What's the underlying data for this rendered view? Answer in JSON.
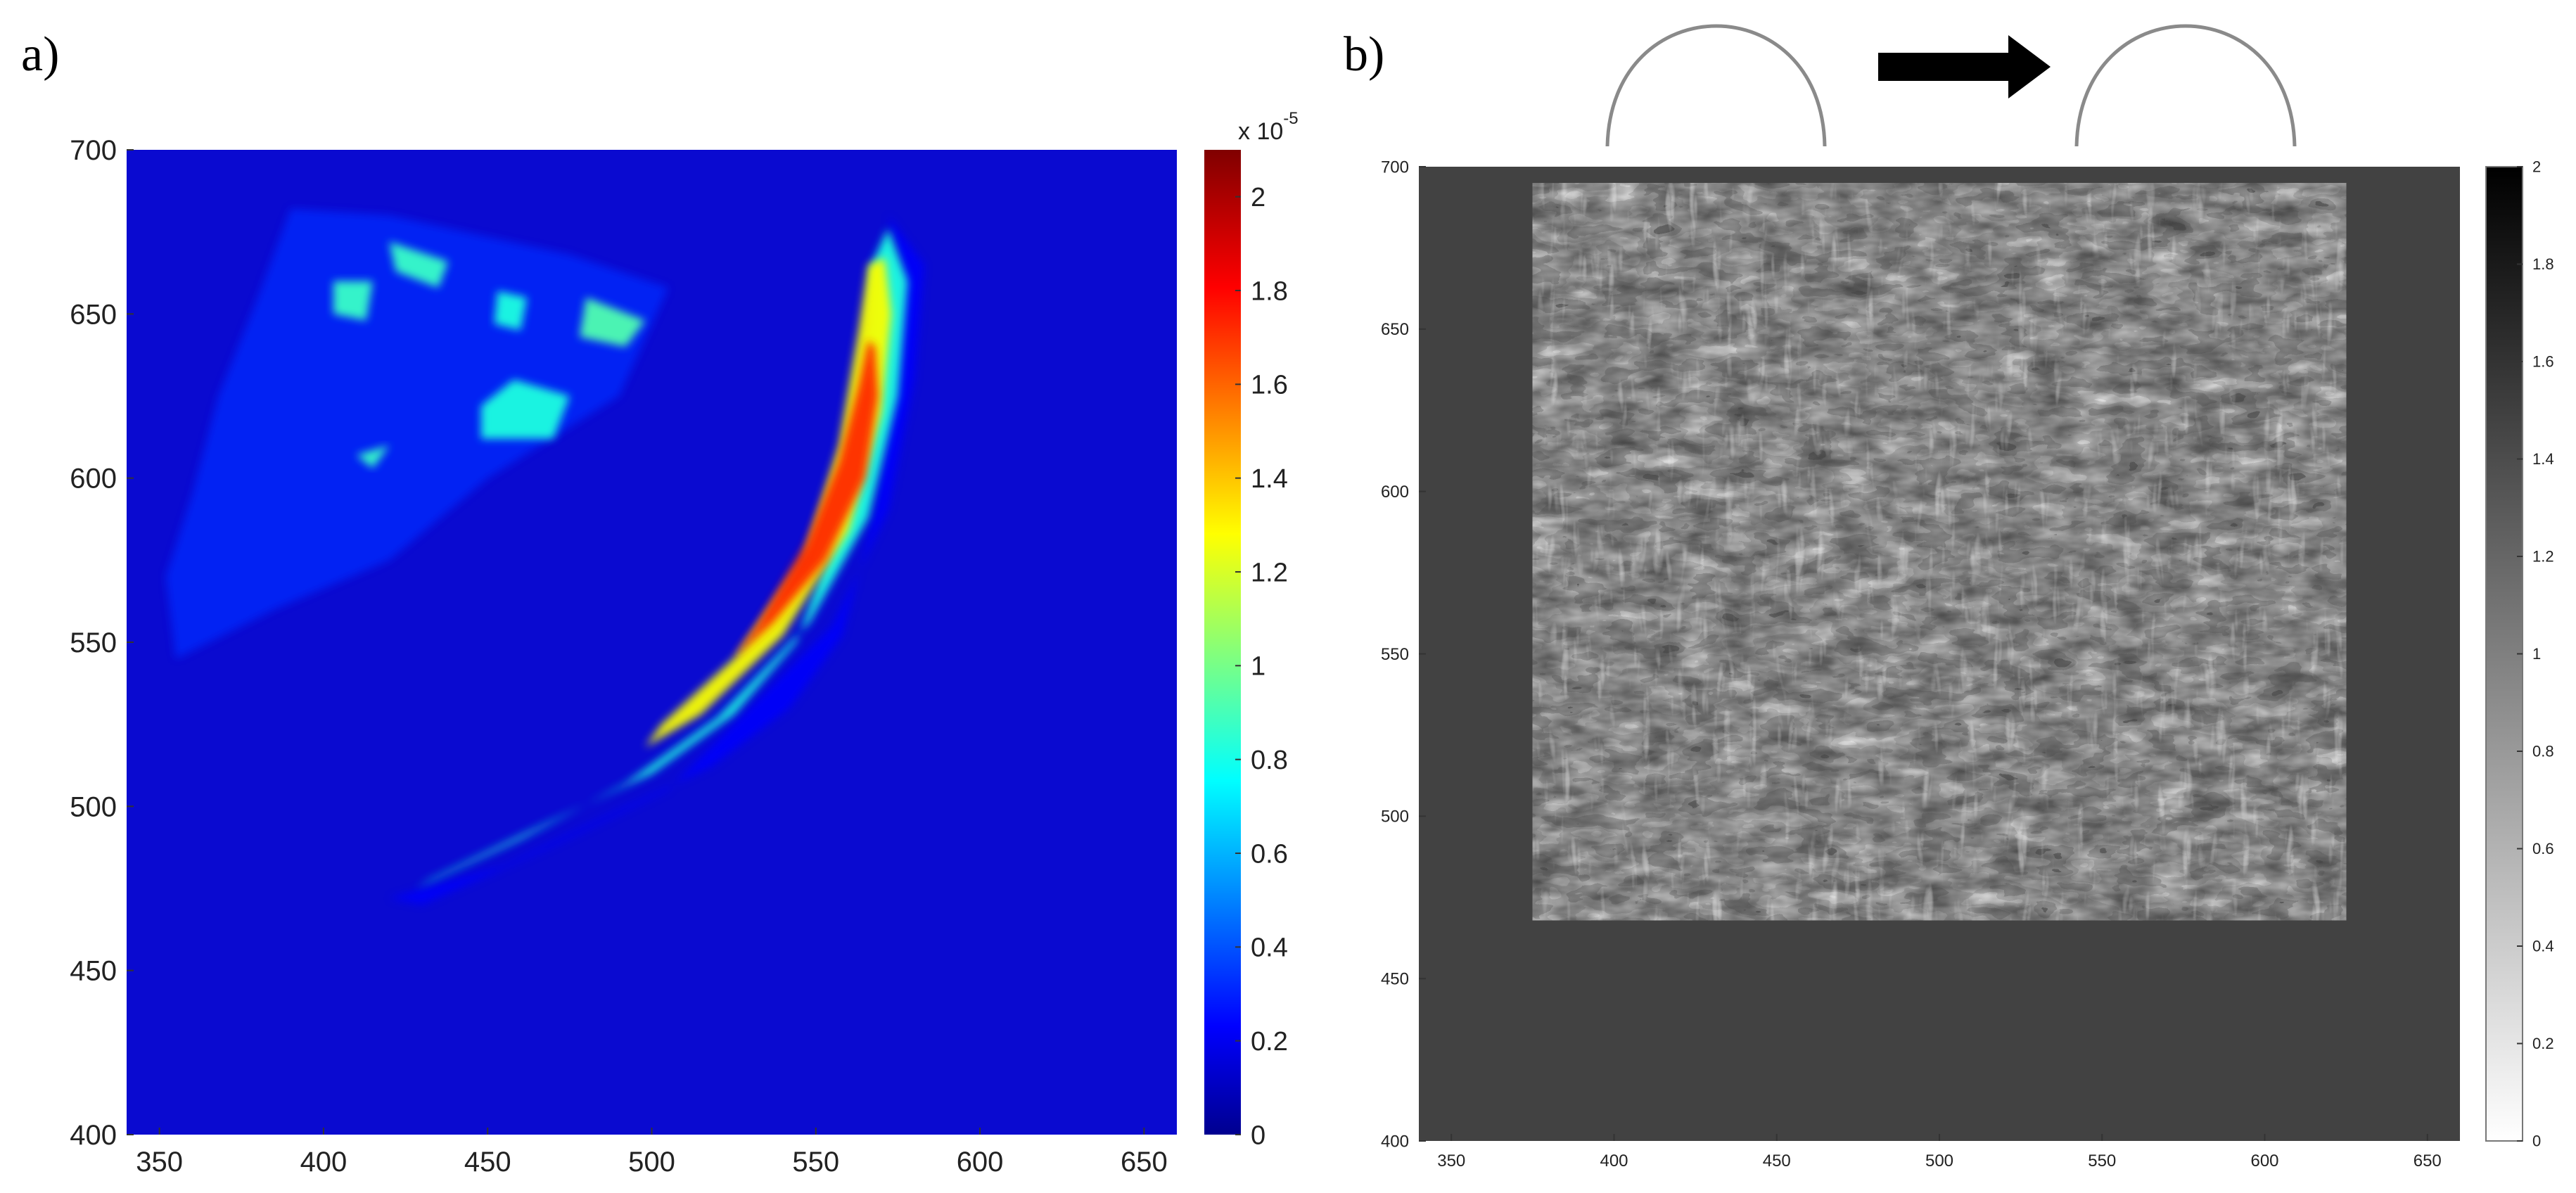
{
  "panels": [
    {
      "label": "a)"
    },
    {
      "label": "b)"
    }
  ],
  "chart_data": [
    {
      "type": "heatmap",
      "colormap": "jet",
      "background_color": "#0a0ad0",
      "xlim": [
        340,
        660
      ],
      "ylim": [
        400,
        700
      ],
      "xticks": [
        "350",
        "400",
        "450",
        "500",
        "550",
        "600",
        "650"
      ],
      "yticks": [
        "400",
        "450",
        "500",
        "550",
        "600",
        "650",
        "700"
      ],
      "colorbar": {
        "min": 0,
        "max": 2.1,
        "ticks": [
          "0",
          "0.2",
          "0.4",
          "0.6",
          "0.8",
          "1",
          "1.2",
          "1.4",
          "1.6",
          "1.8",
          "2"
        ],
        "exponent_label": "x 10",
        "exponent_power": "-5"
      },
      "features": [
        {
          "name": "diffuse-region",
          "polygon": [
            [
              380,
              655
            ],
            [
              390,
              682
            ],
            [
              420,
              680
            ],
            [
              475,
              668
            ],
            [
              505,
              658
            ],
            [
              490,
              625
            ],
            [
              450,
              600
            ],
            [
              420,
              575
            ],
            [
              385,
              560
            ],
            [
              355,
              545
            ],
            [
              352,
              570
            ],
            [
              360,
              595
            ],
            [
              368,
              625
            ]
          ],
          "value": 0.35
        },
        {
          "name": "green-spot-1",
          "polygon": [
            [
              403,
              660
            ],
            [
              415,
              660
            ],
            [
              413,
              648
            ],
            [
              403,
              650
            ]
          ],
          "value": 0.9
        },
        {
          "name": "green-spot-2",
          "polygon": [
            [
              420,
              672
            ],
            [
              438,
              666
            ],
            [
              435,
              658
            ],
            [
              422,
              663
            ]
          ],
          "value": 0.9
        },
        {
          "name": "green-spot-3",
          "polygon": [
            [
              453,
              657
            ],
            [
              462,
              655
            ],
            [
              460,
              645
            ],
            [
              452,
              647
            ]
          ],
          "value": 0.85
        },
        {
          "name": "green-spot-4",
          "polygon": [
            [
              480,
              655
            ],
            [
              498,
              648
            ],
            [
              492,
              640
            ],
            [
              478,
              643
            ]
          ],
          "value": 0.95
        },
        {
          "name": "green-spot-5",
          "polygon": [
            [
              448,
              612
            ],
            [
              470,
              612
            ],
            [
              475,
              625
            ],
            [
              458,
              630
            ],
            [
              448,
              622
            ]
          ],
          "value": 0.85
        },
        {
          "name": "green-spot-6",
          "polygon": [
            [
              410,
              607
            ],
            [
              420,
              610
            ],
            [
              415,
              603
            ]
          ],
          "value": 0.9
        },
        {
          "name": "band-halo",
          "polygon": [
            [
              572,
              680
            ],
            [
              583,
              665
            ],
            [
              580,
              630
            ],
            [
              572,
              590
            ],
            [
              555,
              555
            ],
            [
              528,
              528
            ],
            [
              505,
              505
            ],
            [
              470,
              488
            ],
            [
              430,
              470
            ],
            [
              420,
              472
            ],
            [
              455,
              482
            ],
            [
              488,
              498
            ],
            [
              518,
              512
            ],
            [
              542,
              530
            ],
            [
              558,
              552
            ],
            [
              568,
              590
            ],
            [
              574,
              630
            ],
            [
              576,
              665
            ]
          ],
          "value": 0.25
        },
        {
          "name": "band-cyan",
          "polygon": [
            [
              572,
              676
            ],
            [
              578,
              660
            ],
            [
              575,
              625
            ],
            [
              566,
              588
            ],
            [
              548,
              556
            ],
            [
              520,
              527
            ],
            [
              492,
              507
            ],
            [
              460,
              490
            ],
            [
              428,
              475
            ],
            [
              433,
              478
            ],
            [
              468,
              495
            ],
            [
              500,
              510
            ],
            [
              525,
              528
            ],
            [
              544,
              550
            ],
            [
              557,
              585
            ],
            [
              566,
              628
            ],
            [
              567,
              665
            ]
          ],
          "value": 0.85
        },
        {
          "name": "band-yellow",
          "polygon": [
            [
              571,
              667
            ],
            [
              573,
              650
            ],
            [
              570,
              620
            ],
            [
              560,
              584
            ],
            [
              540,
              552
            ],
            [
              515,
              528
            ],
            [
              498,
              518
            ],
            [
              503,
              525
            ],
            [
              525,
              545
            ],
            [
              546,
              575
            ],
            [
              557,
              610
            ],
            [
              563,
              645
            ],
            [
              566,
              665
            ]
          ],
          "value": 1.3
        },
        {
          "name": "band-red",
          "polygon": [
            [
              568,
              640
            ],
            [
              569,
              625
            ],
            [
              565,
              600
            ],
            [
              553,
              575
            ],
            [
              537,
              556
            ],
            [
              525,
              545
            ],
            [
              532,
              555
            ],
            [
              547,
              580
            ],
            [
              557,
              605
            ],
            [
              563,
              628
            ],
            [
              566,
              642
            ]
          ],
          "value": 1.75
        }
      ]
    },
    {
      "type": "heatmap",
      "colormap": "gray-reversed",
      "background_color": "#424242",
      "xlim": [
        340,
        660
      ],
      "ylim": [
        400,
        700
      ],
      "xticks": [
        "350",
        "400",
        "450",
        "500",
        "550",
        "600",
        "650"
      ],
      "yticks": [
        "400",
        "450",
        "500",
        "550",
        "600",
        "650",
        "700"
      ],
      "colorbar": {
        "min": 0,
        "max": 2,
        "ticks": [
          "0",
          "0.2",
          "0.4",
          "0.6",
          "0.8",
          "1",
          "1.2",
          "1.4",
          "1.6",
          "1.8",
          "2"
        ]
      },
      "data_region": {
        "x": [
          375,
          625
        ],
        "y": [
          468,
          695
        ]
      },
      "annotations": [
        "arch-left",
        "arrow-right",
        "arch-right"
      ]
    }
  ]
}
